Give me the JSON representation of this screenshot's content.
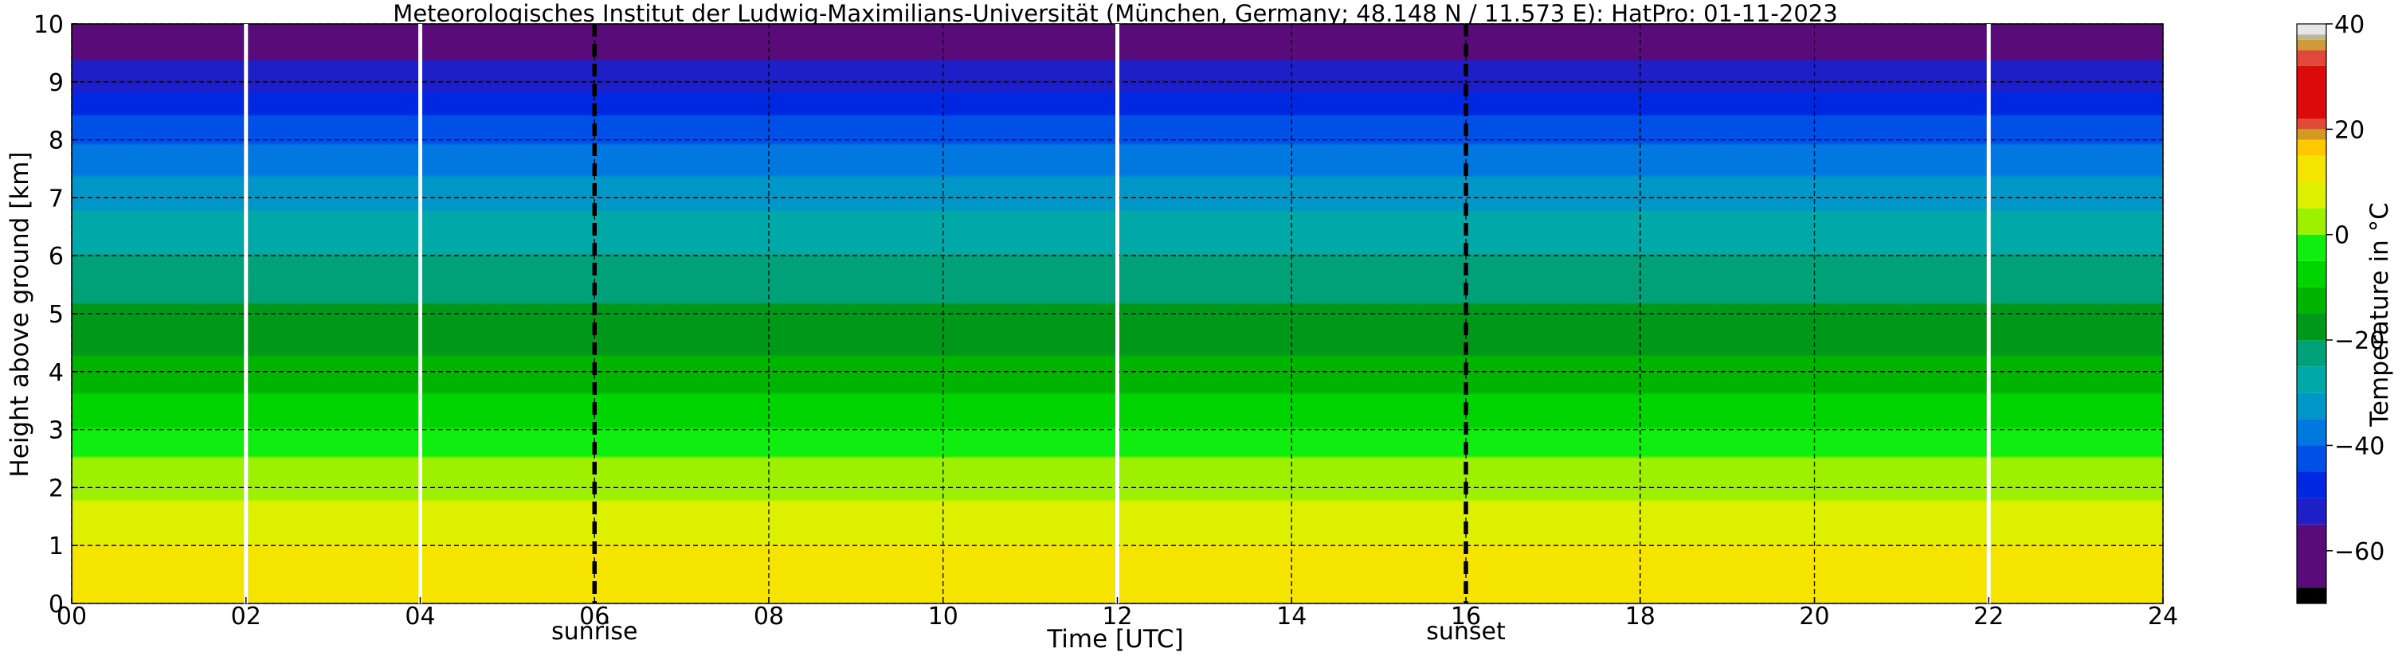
{
  "chart_data": {
    "type": "heatmap",
    "title": "Meteorologisches Institut der Ludwig-Maximilians-Universität (München, Germany; 48.148 N / 11.573 E):    HatPro: 01-11-2023",
    "xlabel": "Time [UTC]",
    "ylabel": "Height above ground [km]",
    "xlim": [
      0,
      24
    ],
    "ylim": [
      0,
      10
    ],
    "x_ticks": [
      "00",
      "02",
      "04",
      "06",
      "08",
      "10",
      "12",
      "14",
      "16",
      "18",
      "20",
      "22",
      "24"
    ],
    "y_ticks": [
      "0",
      "1",
      "2",
      "3",
      "4",
      "5",
      "6",
      "7",
      "8",
      "9",
      "10"
    ],
    "grid": true,
    "colorbar": {
      "label": "Temperature in °C",
      "range": [
        -70,
        40
      ],
      "ticks": [
        "40",
        "20",
        "0",
        "−20",
        "−40",
        "−60"
      ],
      "tick_values": [
        40,
        20,
        0,
        -20,
        -40,
        -60
      ],
      "segments": [
        {
          "from": -70,
          "to": -67,
          "color": "#000000"
        },
        {
          "from": -67,
          "to": -55,
          "color": "#5a0b7a"
        },
        {
          "from": -55,
          "to": -50,
          "color": "#1f1fc8"
        },
        {
          "from": -50,
          "to": -45,
          "color": "#0028e0"
        },
        {
          "from": -45,
          "to": -40,
          "color": "#0050e8"
        },
        {
          "from": -40,
          "to": -35,
          "color": "#0078e0"
        },
        {
          "from": -35,
          "to": -30,
          "color": "#0096c8"
        },
        {
          "from": -30,
          "to": -25,
          "color": "#00a8a8"
        },
        {
          "from": -25,
          "to": -20,
          "color": "#00a078"
        },
        {
          "from": -20,
          "to": -15,
          "color": "#009818"
        },
        {
          "from": -15,
          "to": -10,
          "color": "#00b400"
        },
        {
          "from": -10,
          "to": -5,
          "color": "#00d400"
        },
        {
          "from": -5,
          "to": 0,
          "color": "#10ee10"
        },
        {
          "from": 0,
          "to": 5,
          "color": "#9cf000"
        },
        {
          "from": 5,
          "to": 10,
          "color": "#dcf000"
        },
        {
          "from": 10,
          "to": 15,
          "color": "#f4e400"
        },
        {
          "from": 15,
          "to": 18,
          "color": "#ffc800"
        },
        {
          "from": 18,
          "to": 20,
          "color": "#d29a20"
        },
        {
          "from": 20,
          "to": 22,
          "color": "#e04a38"
        },
        {
          "from": 22,
          "to": 32,
          "color": "#dc0a0a"
        },
        {
          "from": 32,
          "to": 35,
          "color": "#e0483c"
        },
        {
          "from": 35,
          "to": 37,
          "color": "#d09a3a"
        },
        {
          "from": 37,
          "to": 38,
          "color": "#b8b89a"
        },
        {
          "from": 38,
          "to": 40,
          "color": "#e6e6e6"
        }
      ]
    },
    "temperature_profile": {
      "height_km": [
        0,
        0.5,
        1,
        1.5,
        2,
        2.5,
        3,
        3.5,
        4,
        4.5,
        5,
        5.5,
        6,
        6.5,
        7,
        7.5,
        8,
        8.5,
        9,
        9.5,
        10
      ],
      "temp_c": [
        14,
        12,
        10,
        7,
        3,
        0,
        -5,
        -9,
        -13,
        -17,
        -19,
        -22,
        -25,
        -28,
        -32,
        -36,
        -41,
        -46,
        -52,
        -56,
        -58
      ]
    },
    "data_gaps_utc": [
      2.0,
      4.0,
      12.0,
      22.0
    ],
    "markers": [
      {
        "x": 6.0,
        "label": "sunrise"
      },
      {
        "x": 16.0,
        "label": "sunset"
      }
    ]
  }
}
